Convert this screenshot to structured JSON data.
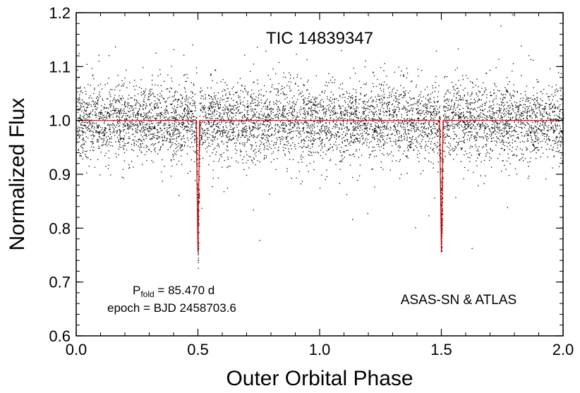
{
  "chart_data": {
    "type": "scatter",
    "title": "TIC 14839347",
    "xlabel": "Outer Orbital Phase",
    "ylabel": "Normalized Flux",
    "xlim": [
      0.0,
      2.0
    ],
    "ylim": [
      0.6,
      1.2
    ],
    "x_ticks": [
      "0.0",
      "0.5",
      "1.0",
      "1.5",
      "2.0"
    ],
    "y_ticks": [
      "0.6",
      "0.7",
      "0.8",
      "0.9",
      "1.0",
      "1.1",
      "1.2"
    ],
    "grid": false,
    "annotations": {
      "period_prefix": "P",
      "period_sub": "fold",
      "period_value": " = 85.470 d",
      "epoch": "epoch = BJD 2458703.6",
      "source": "ASAS-SN & ATLAS"
    },
    "series": [
      {
        "kind": "scatter",
        "color": "#000000",
        "baseline_flux": 1.0,
        "scatter_sigma": 0.035,
        "phase_range": [
          0.0,
          2.0
        ]
      },
      {
        "kind": "model",
        "color": "#cc0000",
        "baseline_flux": 1.0,
        "eclipses": [
          {
            "phase": 0.5,
            "min_flux": 0.755
          },
          {
            "phase": 1.5,
            "min_flux": 0.755
          }
        ]
      }
    ]
  }
}
